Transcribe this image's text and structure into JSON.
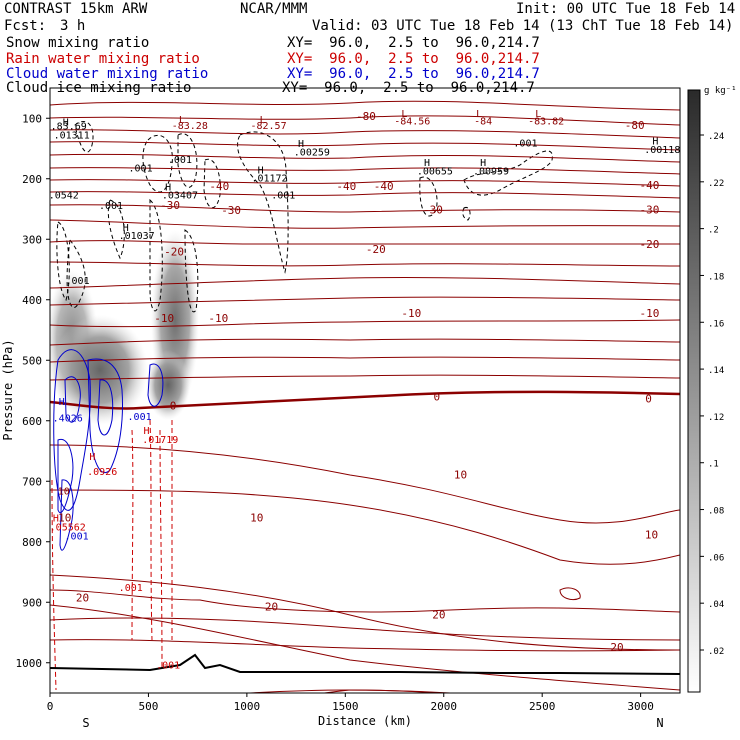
{
  "header": {
    "model": "CONTRAST 15km ARW",
    "org": "NCAR/MMM",
    "init": "Init: 00 UTC Tue 18 Feb 14",
    "fcst_label": "Fcst:",
    "fcst_value": "3 h",
    "valid": "Valid: 03 UTC Tue 18 Feb 14 (13 ChT Tue 18 Feb 14)"
  },
  "fields": [
    {
      "name": "Snow mixing ratio",
      "xy": "XY=  96.0,  2.5 to  96.0,214.7",
      "color": "#000000"
    },
    {
      "name": "Rain water mixing ratio",
      "xy": "XY=  96.0,  2.5 to  96.0,214.7",
      "color": "#cc0000"
    },
    {
      "name": "Cloud water mixing ratio",
      "xy": "XY=  96.0,  2.5 to  96.0,214.7",
      "color": "#0000cc"
    },
    {
      "name": "Cloud ice mixing ratio",
      "xy": "XY=  96.0,  2.5 to  96.0,214.7",
      "color": "#000000"
    }
  ],
  "chart_data": {
    "type": "cross-section",
    "xlabel": "Distance (km)",
    "ylabel": "Pressure (hPa)",
    "xlim": [
      0,
      3200
    ],
    "ylim": [
      1050,
      50
    ],
    "x_ticks": [
      "0",
      "500",
      "1000",
      "1500",
      "2000",
      "2500",
      "3000"
    ],
    "y_ticks": [
      "100",
      "200",
      "300",
      "400",
      "500",
      "600",
      "700",
      "800",
      "900",
      "1000"
    ],
    "x_end_labels": [
      "S",
      "N"
    ],
    "colorbar": {
      "unit": "g kg⁻¹",
      "ticks": [
        ".24",
        ".22",
        ".2",
        ".18",
        ".16",
        ".14",
        ".12",
        ".1",
        ".08",
        ".06",
        ".04",
        ".02"
      ]
    },
    "temperature_contours": [
      {
        "label": "-80",
        "p": 100
      },
      {
        "label": "-40",
        "p": 210
      },
      {
        "label": "-30",
        "p": 265
      },
      {
        "label": "-20",
        "p": 330
      },
      {
        "label": "-10",
        "p": 420
      },
      {
        "label": "0",
        "p": 570
      },
      {
        "label": "10",
        "p": 690
      },
      {
        "label": "20",
        "p": 870
      }
    ],
    "contour_labels": [
      {
        "text": "-80",
        "x": 1605,
        "p": 96,
        "color": "#8b0000"
      },
      {
        "text": "-80",
        "x": 2970,
        "p": 111,
        "color": "#8b0000"
      },
      {
        "text": "-40",
        "x": 1505,
        "p": 212,
        "color": "#8b0000"
      },
      {
        "text": "-40",
        "x": 1695,
        "p": 212,
        "color": "#8b0000"
      },
      {
        "text": "-40",
        "x": 860,
        "p": 212,
        "color": "#8b0000"
      },
      {
        "text": "-40",
        "x": 3045,
        "p": 210,
        "color": "#8b0000"
      },
      {
        "text": "-30",
        "x": 610,
        "p": 243,
        "color": "#8b0000"
      },
      {
        "text": "-30",
        "x": 920,
        "p": 252,
        "color": "#8b0000"
      },
      {
        "text": "-30",
        "x": 1945,
        "p": 251,
        "color": "#8b0000"
      },
      {
        "text": "-30",
        "x": 3045,
        "p": 251,
        "color": "#8b0000"
      },
      {
        "text": "-20",
        "x": 630,
        "p": 320,
        "color": "#8b0000"
      },
      {
        "text": "-20",
        "x": 1655,
        "p": 316,
        "color": "#8b0000"
      },
      {
        "text": "-20",
        "x": 3045,
        "p": 308,
        "color": "#8b0000"
      },
      {
        "text": "-10",
        "x": 580,
        "p": 430,
        "color": "#8b0000"
      },
      {
        "text": "-10",
        "x": 855,
        "p": 430,
        "color": "#8b0000"
      },
      {
        "text": "-10",
        "x": 1835,
        "p": 422,
        "color": "#8b0000"
      },
      {
        "text": "-10",
        "x": 3045,
        "p": 422,
        "color": "#8b0000"
      },
      {
        "text": "0",
        "x": 625,
        "p": 575,
        "color": "#8b0000"
      },
      {
        "text": "0",
        "x": 1965,
        "p": 560,
        "color": "#8b0000"
      },
      {
        "text": "0",
        "x": 3040,
        "p": 563,
        "color": "#8b0000"
      },
      {
        "text": "10",
        "x": 2085,
        "p": 689,
        "color": "#8b0000"
      },
      {
        "text": "10",
        "x": 1050,
        "p": 760,
        "color": "#8b0000"
      },
      {
        "text": "10",
        "x": 3055,
        "p": 788,
        "color": "#8b0000"
      },
      {
        "text": "20",
        "x": 165,
        "p": 892,
        "color": "#8b0000"
      },
      {
        "text": "20",
        "x": 1125,
        "p": 907,
        "color": "#8b0000"
      },
      {
        "text": "20",
        "x": 1975,
        "p": 920,
        "color": "#8b0000"
      },
      {
        "text": "20",
        "x": 2880,
        "p": 974,
        "color": "#8b0000"
      },
      {
        "text": "10",
        "x": 75,
        "p": 760,
        "color": "#8b0000"
      }
    ],
    "extrema": [
      {
        "text": "H",
        "x": 80,
        "p": 105,
        "color": "#000000"
      },
      {
        "text": ".83.69",
        "x": 95,
        "p": 112,
        "color": "#000000"
      },
      {
        "text": ".01311",
        "x": 110,
        "p": 127,
        "color": "#000000"
      },
      {
        "text": "L",
        "x": 670,
        "p": 101,
        "color": "#8b0000"
      },
      {
        "text": "-83.28",
        "x": 710,
        "p": 111,
        "color": "#8b0000"
      },
      {
        "text": "L",
        "x": 1080,
        "p": 101,
        "color": "#8b0000"
      },
      {
        "text": "-82.57",
        "x": 1110,
        "p": 111,
        "color": "#8b0000"
      },
      {
        "text": "L",
        "x": 1800,
        "p": 91,
        "color": "#8b0000"
      },
      {
        "text": "-84.56",
        "x": 1840,
        "p": 104,
        "color": "#8b0000"
      },
      {
        "text": "L",
        "x": 2180,
        "p": 91,
        "color": "#8b0000"
      },
      {
        "text": "-84",
        "x": 2200,
        "p": 104,
        "color": "#8b0000"
      },
      {
        "text": "L",
        "x": 2480,
        "p": 91,
        "color": "#8b0000"
      },
      {
        "text": "-83.82",
        "x": 2520,
        "p": 104,
        "color": "#8b0000"
      },
      {
        "text": "H",
        "x": 1275,
        "p": 141,
        "color": "#000000"
      },
      {
        "text": ".00259",
        "x": 1330,
        "p": 155,
        "color": "#000000"
      },
      {
        "text": ".001",
        "x": 2415,
        "p": 140,
        "color": "#000000"
      },
      {
        "text": "H",
        "x": 3075,
        "p": 137,
        "color": "#000000"
      },
      {
        "text": ".00118",
        "x": 3110,
        "p": 151,
        "color": "#000000"
      },
      {
        "text": ".001",
        "x": 660,
        "p": 167,
        "color": "#000000"
      },
      {
        "text": ".001",
        "x": 460,
        "p": 181,
        "color": "#000000"
      },
      {
        "text": "H",
        "x": 1070,
        "p": 185,
        "color": "#000000"
      },
      {
        "text": ".01172",
        "x": 1115,
        "p": 198,
        "color": "#000000"
      },
      {
        "text": "H",
        "x": 1915,
        "p": 172,
        "color": "#000000"
      },
      {
        "text": ".00655",
        "x": 1955,
        "p": 186,
        "color": "#000000"
      },
      {
        "text": "H",
        "x": 2200,
        "p": 172,
        "color": "#000000"
      },
      {
        "text": ".00959",
        "x": 2240,
        "p": 186,
        "color": "#000000"
      },
      {
        "text": ".0542",
        "x": 70,
        "p": 226,
        "color": "#000000"
      },
      {
        "text": "H",
        "x": 600,
        "p": 213,
        "color": "#000000"
      },
      {
        "text": ".03407",
        "x": 660,
        "p": 226,
        "color": "#000000"
      },
      {
        "text": ".001",
        "x": 1185,
        "p": 226,
        "color": "#000000"
      },
      {
        "text": ".001",
        "x": 310,
        "p": 243,
        "color": "#000000"
      },
      {
        "text": "H",
        "x": 385,
        "p": 280,
        "color": "#000000"
      },
      {
        "text": ".01037",
        "x": 440,
        "p": 293,
        "color": "#000000"
      },
      {
        "text": ".001",
        "x": 140,
        "p": 367,
        "color": "#000000"
      },
      {
        "text": "H",
        "x": 60,
        "p": 567,
        "color": "#0000cc"
      },
      {
        "text": ".4026",
        "x": 90,
        "p": 595,
        "color": "#0000cc"
      },
      {
        "text": ".001",
        "x": 455,
        "p": 592,
        "color": "#0000cc"
      },
      {
        "text": "H",
        "x": 490,
        "p": 615,
        "color": "#cc0000"
      },
      {
        "text": ".01719",
        "x": 560,
        "p": 630,
        "color": "#cc0000"
      },
      {
        "text": "H",
        "x": 215,
        "p": 658,
        "color": "#cc0000"
      },
      {
        "text": ".0926",
        "x": 265,
        "p": 683,
        "color": "#cc0000"
      },
      {
        "text": "10",
        "x": 70,
        "p": 715,
        "color": "#8b0000"
      },
      {
        "text": "H",
        "x": 30,
        "p": 760,
        "color": "#cc0000"
      },
      {
        "text": ".05562",
        "x": 90,
        "p": 775,
        "color": "#cc0000"
      },
      {
        "text": ".001",
        "x": 135,
        "p": 790,
        "color": "#0000cc"
      },
      {
        "text": ".001",
        "x": 410,
        "p": 875,
        "color": "#cc0000"
      },
      {
        "text": ".001",
        "x": 600,
        "p": 1003,
        "color": "#cc0000"
      }
    ]
  }
}
